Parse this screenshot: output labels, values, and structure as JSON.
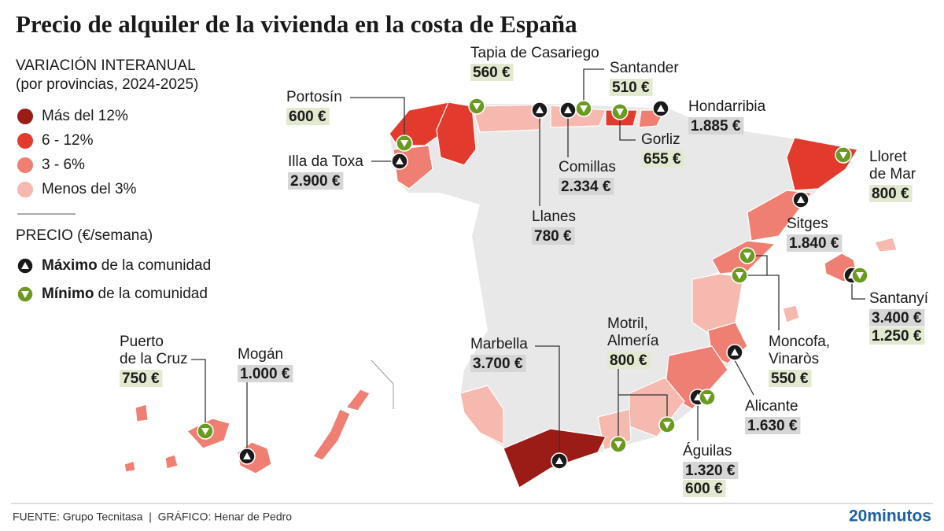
{
  "title": "Precio de alquiler de la vivienda en la costa de España",
  "legend": {
    "variation_title": "VARIACIÓN INTERANUAL",
    "variation_subtitle": "(por provincias, 2024-2025)",
    "classes": [
      {
        "label": "Más del 12%",
        "color": "#9b1c17"
      },
      {
        "label": "6 - 12%",
        "color": "#e23b2e"
      },
      {
        "label": "3 - 6%",
        "color": "#f07f73"
      },
      {
        "label": "Menos del 3%",
        "color": "#f6b9b0"
      }
    ],
    "price_title": "PRECIO (€/semana)",
    "markers": [
      {
        "bold": "Máximo",
        "text": "de la comunidad",
        "kind": "max",
        "color": "#1a1a1a"
      },
      {
        "bold": "Mínimo",
        "text": "de la comunidad",
        "kind": "min",
        "color": "#6a9a1f"
      }
    ]
  },
  "places": [
    {
      "name": [
        "Tapia de Casariego"
      ],
      "prices": [
        {
          "label": "560 €",
          "kind": "min"
        }
      ]
    },
    {
      "name": [
        "Santander"
      ],
      "prices": [
        {
          "label": "510 €",
          "kind": "min"
        }
      ]
    },
    {
      "name": [
        "Portosín"
      ],
      "prices": [
        {
          "label": "600 €",
          "kind": "min"
        }
      ]
    },
    {
      "name": [
        "Hondarribia"
      ],
      "prices": [
        {
          "label": "1.885 €",
          "kind": "max"
        }
      ]
    },
    {
      "name": [
        "Illa da Toxa"
      ],
      "prices": [
        {
          "label": "2.900 €",
          "kind": "max"
        }
      ]
    },
    {
      "name": [
        "Comillas"
      ],
      "prices": [
        {
          "label": "2.334 €",
          "kind": "max"
        }
      ]
    },
    {
      "name": [
        "Gorliz"
      ],
      "prices": [
        {
          "label": "655 €",
          "kind": "min"
        }
      ]
    },
    {
      "name": [
        "Llanes"
      ],
      "prices": [
        {
          "label": "780 €",
          "kind": "max"
        }
      ]
    },
    {
      "name": [
        "Lloret",
        "de Mar"
      ],
      "prices": [
        {
          "label": "800 €",
          "kind": "min"
        }
      ]
    },
    {
      "name": [
        "Sitges"
      ],
      "prices": [
        {
          "label": "1.840 €",
          "kind": "max"
        }
      ]
    },
    {
      "name": [
        "Santanyí"
      ],
      "prices": [
        {
          "label": "3.400 €",
          "kind": "max"
        },
        {
          "label": "1.250 €",
          "kind": "min"
        }
      ]
    },
    {
      "name": [
        "Moncofa,",
        "Vinaròs"
      ],
      "prices": [
        {
          "label": "550 €",
          "kind": "min"
        }
      ]
    },
    {
      "name": [
        "Alicante"
      ],
      "prices": [
        {
          "label": "1.630 €",
          "kind": "max"
        }
      ]
    },
    {
      "name": [
        "Águilas"
      ],
      "prices": [
        {
          "label": "1.320 €",
          "kind": "max"
        },
        {
          "label": "600 €",
          "kind": "min"
        }
      ]
    },
    {
      "name": [
        "Motril,",
        "Almería"
      ],
      "prices": [
        {
          "label": "800 €",
          "kind": "min"
        }
      ]
    },
    {
      "name": [
        "Marbella"
      ],
      "prices": [
        {
          "label": "3.700 €",
          "kind": "max"
        }
      ]
    },
    {
      "name": [
        "Puerto",
        "de la Cruz"
      ],
      "prices": [
        {
          "label": "750 €",
          "kind": "min"
        }
      ]
    },
    {
      "name": [
        "Mogán"
      ],
      "prices": [
        {
          "label": "1.000 €",
          "kind": "max"
        }
      ]
    }
  ],
  "footer": {
    "source": "FUENTE: Grupo Tecnitasa  |  GRÁFICO: Henar de Pedro",
    "brand": "20minutos"
  }
}
